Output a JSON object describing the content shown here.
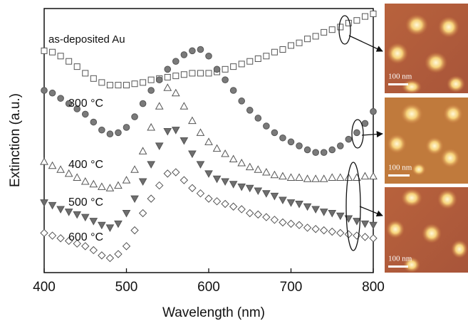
{
  "chart_data": {
    "type": "scatter",
    "xlabel": "Wavelength (nm)",
    "ylabel": "Extinction (a.u.)",
    "xlim": [
      400,
      800
    ],
    "xticks": [
      400,
      500,
      600,
      700,
      800
    ],
    "ylim": [
      0,
      10
    ],
    "x": [
      400,
      410,
      420,
      430,
      440,
      450,
      460,
      470,
      480,
      490,
      500,
      510,
      520,
      530,
      540,
      550,
      560,
      570,
      580,
      590,
      600,
      610,
      620,
      630,
      640,
      650,
      660,
      670,
      680,
      690,
      700,
      710,
      720,
      730,
      740,
      750,
      760,
      770,
      780,
      790,
      800
    ],
    "series": [
      {
        "name": "as-deposited Au",
        "marker": "square",
        "color": "#555",
        "fill": "#fff",
        "values": [
          8.4,
          8.35,
          8.2,
          8.0,
          7.8,
          7.55,
          7.35,
          7.2,
          7.1,
          7.1,
          7.1,
          7.15,
          7.2,
          7.3,
          7.35,
          7.4,
          7.45,
          7.5,
          7.55,
          7.55,
          7.55,
          7.6,
          7.7,
          7.8,
          7.9,
          8.0,
          8.1,
          8.2,
          8.35,
          8.45,
          8.6,
          8.7,
          8.85,
          8.95,
          9.1,
          9.2,
          9.3,
          9.45,
          9.55,
          9.7,
          9.8
        ]
      },
      {
        "name": "300 °C",
        "marker": "circle",
        "color": "#555",
        "fill": "#7a7a7a",
        "values": [
          6.9,
          6.8,
          6.6,
          6.4,
          6.2,
          6.0,
          5.7,
          5.4,
          5.25,
          5.3,
          5.5,
          5.9,
          6.4,
          6.9,
          7.3,
          7.7,
          8.0,
          8.25,
          8.4,
          8.45,
          8.2,
          7.7,
          7.3,
          6.9,
          6.5,
          6.15,
          5.85,
          5.55,
          5.3,
          5.1,
          4.95,
          4.8,
          4.65,
          4.55,
          4.55,
          4.65,
          4.8,
          5.05,
          5.3,
          5.65,
          6.1
        ]
      },
      {
        "name": "400 °C",
        "marker": "triangle",
        "color": "#555",
        "fill": "#fff",
        "values": [
          4.2,
          4.05,
          3.9,
          3.75,
          3.6,
          3.45,
          3.35,
          3.25,
          3.2,
          3.3,
          3.5,
          3.9,
          4.6,
          5.5,
          6.3,
          7.0,
          6.8,
          6.3,
          5.75,
          5.3,
          4.95,
          4.7,
          4.5,
          4.3,
          4.15,
          4.0,
          3.9,
          3.8,
          3.7,
          3.65,
          3.6,
          3.6,
          3.55,
          3.55,
          3.55,
          3.6,
          3.6,
          3.6,
          3.6,
          3.65,
          3.65
        ]
      },
      {
        "name": "500 °C",
        "marker": "triangle-down",
        "color": "#555",
        "fill": "#6e6e6e",
        "values": [
          2.65,
          2.55,
          2.4,
          2.3,
          2.2,
          2.1,
          1.95,
          1.8,
          1.7,
          1.85,
          2.25,
          2.8,
          3.45,
          4.1,
          4.8,
          5.35,
          5.4,
          5.0,
          4.5,
          4.1,
          3.75,
          3.55,
          3.45,
          3.35,
          3.25,
          3.2,
          3.1,
          3.0,
          2.9,
          2.75,
          2.65,
          2.6,
          2.5,
          2.4,
          2.3,
          2.25,
          2.15,
          2.05,
          1.95,
          1.85,
          1.8
        ]
      },
      {
        "name": "600 °C",
        "marker": "diamond",
        "color": "#555",
        "fill": "#fff",
        "values": [
          1.5,
          1.4,
          1.3,
          1.2,
          1.1,
          1.0,
          0.85,
          0.65,
          0.55,
          0.7,
          1.0,
          1.6,
          2.25,
          2.8,
          3.3,
          3.75,
          3.8,
          3.5,
          3.2,
          3.0,
          2.8,
          2.7,
          2.6,
          2.5,
          2.4,
          2.25,
          2.2,
          2.1,
          2.0,
          1.9,
          1.85,
          1.8,
          1.7,
          1.65,
          1.6,
          1.55,
          1.5,
          1.45,
          1.4,
          1.35,
          1.3
        ]
      }
    ]
  },
  "images": [
    {
      "scale_label": "100 nm"
    },
    {
      "scale_label": "100 nm"
    },
    {
      "scale_label": "100 nm"
    }
  ]
}
